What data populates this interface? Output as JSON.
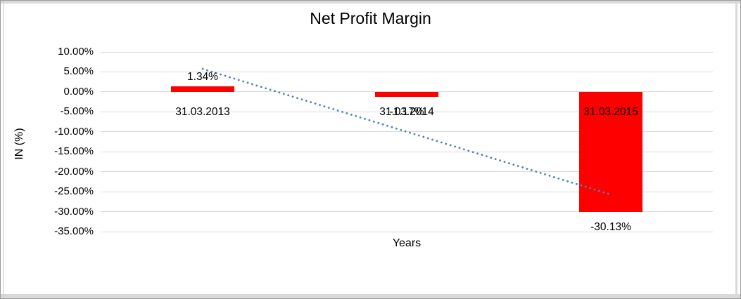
{
  "chart_data": {
    "type": "bar",
    "title": "Net Profit Margin",
    "xlabel": "Years",
    "ylabel": "IN (%)",
    "categories": [
      "31.03.2013",
      "31.03.2014",
      "31.03.2015"
    ],
    "values": [
      1.34,
      -1.17,
      -30.13
    ],
    "data_labels": [
      "1.34%",
      "-1.17%",
      "-30.13%"
    ],
    "ytick_values": [
      10,
      5,
      0,
      -5,
      -10,
      -15,
      -20,
      -25,
      -30,
      -35
    ],
    "ytick_labels": [
      "10.00%",
      "5.00%",
      "0.00%",
      "-5.00%",
      "-10.00%",
      "-15.00%",
      "-20.00%",
      "-25.00%",
      "-30.00%",
      "-35.00%"
    ],
    "ylim": [
      -35,
      10
    ],
    "grid": true,
    "legend": "none",
    "bar_color": "#FF0000",
    "gridline_color": "#D9D9D9",
    "trendline": {
      "type": "linear",
      "style": "dotted",
      "color": "#4F81BD",
      "start_value": 5.75,
      "end_value": -25.72
    }
  },
  "frame": {
    "band_color": "#D9D9D9"
  }
}
